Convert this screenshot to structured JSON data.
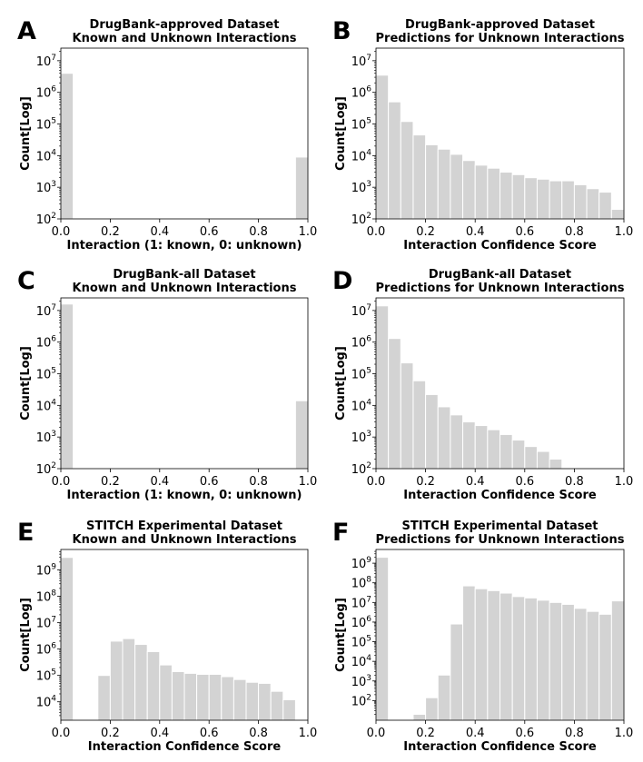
{
  "chart_data": [
    {
      "panel": "A",
      "type": "bar",
      "title": [
        "DrugBank-approved Dataset",
        "Known and Unknown Interactions"
      ],
      "xlabel": "Interaction (1: known, 0: unknown)",
      "ylabel": "Count[Log]",
      "yscale": "log",
      "xlim": [
        0,
        1
      ],
      "ylim": [
        100,
        25000000
      ],
      "xticks": [
        "0.0",
        "0.2",
        "0.4",
        "0.6",
        "0.8",
        "1.0"
      ],
      "yticks": [
        2,
        3,
        4,
        5,
        6,
        7
      ],
      "bins": 20,
      "values": [
        4000000,
        0,
        0,
        0,
        0,
        0,
        0,
        0,
        0,
        0,
        0,
        0,
        0,
        0,
        0,
        0,
        0,
        0,
        0,
        9000
      ]
    },
    {
      "panel": "B",
      "type": "bar",
      "title": [
        "DrugBank-approved Dataset",
        "Predictions for Unknown Interactions"
      ],
      "xlabel": "Interaction Confidence Score",
      "ylabel": "Count[Log]",
      "yscale": "log",
      "xlim": [
        0,
        1
      ],
      "ylim": [
        100,
        25000000
      ],
      "xticks": [
        "0.0",
        "0.2",
        "0.4",
        "0.6",
        "0.8",
        "1.0"
      ],
      "yticks": [
        2,
        3,
        4,
        5,
        6,
        7
      ],
      "bins": 20,
      "values": [
        3500000,
        500000,
        120000,
        45000,
        22000,
        16000,
        11000,
        7000,
        5000,
        4000,
        3000,
        2500,
        2000,
        1800,
        1600,
        1600,
        1200,
        900,
        700,
        200
      ]
    },
    {
      "panel": "C",
      "type": "bar",
      "title": [
        "DrugBank-all Dataset",
        "Known and Unknown Interactions"
      ],
      "xlabel": "Interaction (1: known, 0: unknown)",
      "ylabel": "Count[Log]",
      "yscale": "log",
      "xlim": [
        0,
        1
      ],
      "ylim": [
        100,
        25000000
      ],
      "xticks": [
        "0.0",
        "0.2",
        "0.4",
        "0.6",
        "0.8",
        "1.0"
      ],
      "yticks": [
        2,
        3,
        4,
        5,
        6,
        7
      ],
      "bins": 20,
      "values": [
        16000000,
        0,
        0,
        0,
        0,
        0,
        0,
        0,
        0,
        0,
        0,
        0,
        0,
        0,
        0,
        0,
        0,
        0,
        0,
        14000
      ]
    },
    {
      "panel": "D",
      "type": "bar",
      "title": [
        "DrugBank-all Dataset",
        "Predictions for Unknown Interactions"
      ],
      "xlabel": "Interaction Confidence Score",
      "ylabel": "Count[Log]",
      "yscale": "log",
      "xlim": [
        0,
        1
      ],
      "ylim": [
        100,
        25000000
      ],
      "xticks": [
        "0.0",
        "0.2",
        "0.4",
        "0.6",
        "0.8",
        "1.0"
      ],
      "yticks": [
        2,
        3,
        4,
        5,
        6,
        7
      ],
      "bins": 20,
      "values": [
        14000000,
        1300000,
        220000,
        60000,
        22000,
        9000,
        5000,
        3000,
        2300,
        1700,
        1200,
        800,
        500,
        350,
        200,
        0,
        0,
        0,
        0,
        0
      ]
    },
    {
      "panel": "E",
      "type": "bar",
      "title": [
        "STITCH Experimental Dataset",
        "Known and Unknown Interactions"
      ],
      "xlabel": "Interaction Confidence Score",
      "ylabel": "Count[Log]",
      "yscale": "log",
      "xlim": [
        0,
        1
      ],
      "ylim": [
        2000,
        6000000000
      ],
      "xticks": [
        "0.0",
        "0.2",
        "0.4",
        "0.6",
        "0.8",
        "1.0"
      ],
      "yticks": [
        4,
        5,
        6,
        7,
        8,
        9
      ],
      "bins": 20,
      "values": [
        3000000000,
        0,
        0,
        100000,
        2000000,
        2500000,
        1500000,
        800000,
        250000,
        140000,
        120000,
        110000,
        110000,
        90000,
        70000,
        55000,
        50000,
        25000,
        12000,
        0
      ]
    },
    {
      "panel": "F",
      "type": "bar",
      "title": [
        "STITCH Experimental Dataset",
        "Predictions for Unknown Interactions"
      ],
      "xlabel": "Interaction Confidence Score",
      "ylabel": "Count[Log]",
      "yscale": "log",
      "xlim": [
        0,
        1
      ],
      "ylim": [
        10,
        5000000000
      ],
      "xticks": [
        "0.0",
        "0.2",
        "0.4",
        "0.6",
        "0.8",
        "1.0"
      ],
      "yticks": [
        2,
        3,
        4,
        5,
        6,
        7,
        8,
        9
      ],
      "bins": 20,
      "values": [
        2000000000,
        0,
        0,
        20,
        140,
        2000,
        800000,
        70000000,
        50000000,
        40000000,
        30000000,
        20000000,
        17000000,
        13000000,
        10000000,
        8000000,
        5000000,
        3500000,
        2500000,
        12000000
      ]
    }
  ]
}
